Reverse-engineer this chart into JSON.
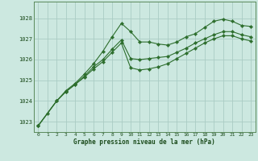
{
  "title": "Graphe pression niveau de la mer (hPa)",
  "background_color": "#cce8e0",
  "grid_color": "#aaccc4",
  "line_color": "#2d6e2d",
  "xlim": [
    -0.5,
    23.5
  ],
  "ylim": [
    1022.5,
    1028.8
  ],
  "yticks": [
    1023,
    1024,
    1025,
    1026,
    1027,
    1028
  ],
  "xticks": [
    0,
    1,
    2,
    3,
    4,
    5,
    6,
    7,
    8,
    9,
    10,
    11,
    12,
    13,
    14,
    15,
    16,
    17,
    18,
    19,
    20,
    21,
    22,
    23
  ],
  "line1_x": [
    0,
    1,
    2,
    3,
    4,
    5,
    6,
    7,
    8,
    9,
    10,
    11,
    12,
    13,
    14,
    15,
    16,
    17,
    18,
    19,
    20,
    21,
    22,
    23
  ],
  "line1_y": [
    1022.8,
    1023.4,
    1024.0,
    1024.5,
    1024.85,
    1025.3,
    1025.8,
    1026.4,
    1027.1,
    1027.75,
    1027.35,
    1026.85,
    1026.85,
    1026.75,
    1026.7,
    1026.85,
    1027.1,
    1027.25,
    1027.55,
    1027.85,
    1027.95,
    1027.85,
    1027.65,
    1027.6
  ],
  "line2_x": [
    0,
    2,
    3,
    4,
    5,
    6,
    7,
    8,
    9,
    10,
    11,
    12,
    13,
    14,
    15,
    16,
    17,
    18,
    19,
    20,
    21,
    22,
    23
  ],
  "line2_y": [
    1022.8,
    1024.0,
    1024.45,
    1024.8,
    1025.2,
    1025.65,
    1026.0,
    1026.5,
    1026.95,
    1026.05,
    1026.0,
    1026.05,
    1026.1,
    1026.15,
    1026.35,
    1026.55,
    1026.8,
    1027.0,
    1027.2,
    1027.35,
    1027.35,
    1027.2,
    1027.1
  ],
  "line3_x": [
    0,
    2,
    3,
    4,
    5,
    6,
    7,
    8,
    9,
    10,
    11,
    12,
    13,
    14,
    15,
    16,
    17,
    18,
    19,
    20,
    21,
    22,
    23
  ],
  "line3_y": [
    1022.8,
    1024.0,
    1024.45,
    1024.8,
    1025.15,
    1025.55,
    1025.9,
    1026.35,
    1026.8,
    1025.6,
    1025.5,
    1025.55,
    1025.65,
    1025.8,
    1026.05,
    1026.3,
    1026.55,
    1026.8,
    1027.0,
    1027.15,
    1027.15,
    1027.0,
    1026.9
  ]
}
